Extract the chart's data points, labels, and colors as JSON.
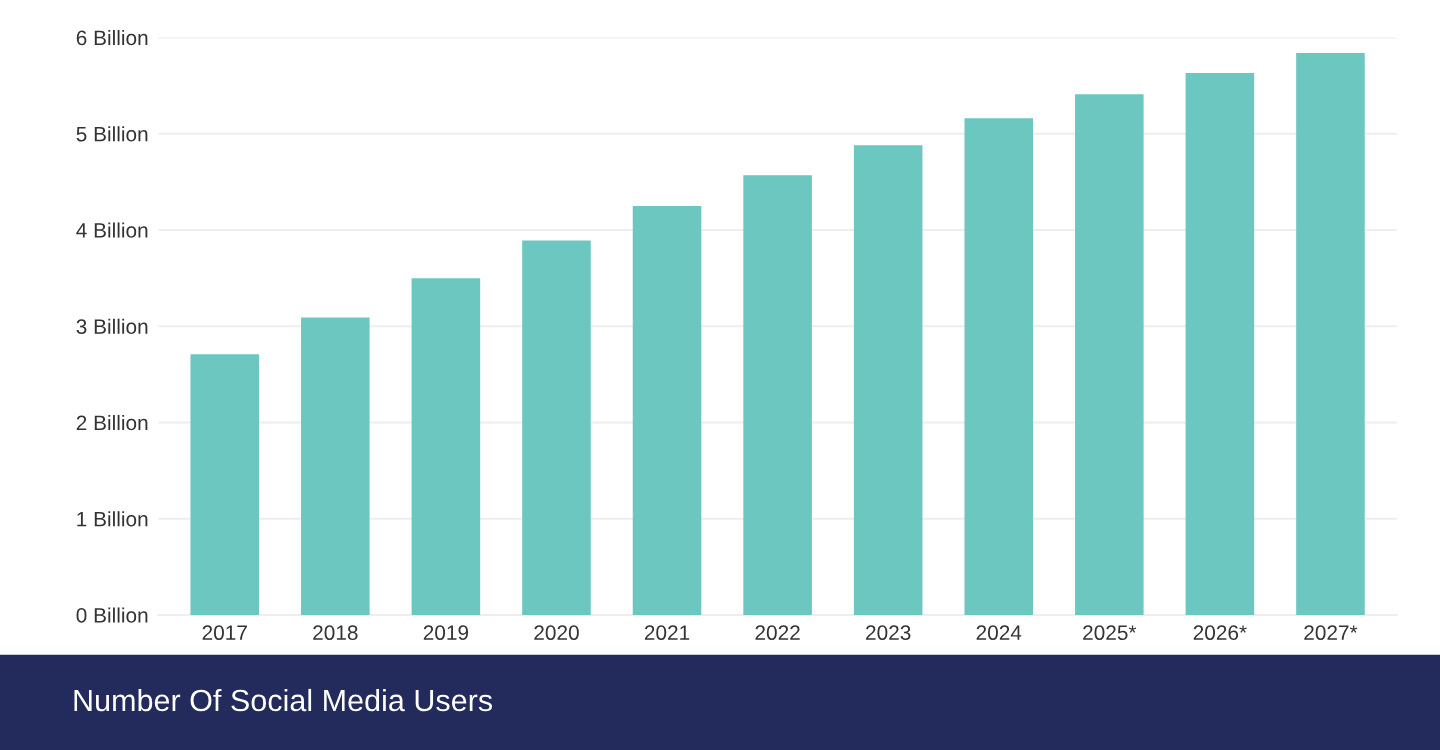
{
  "chart_data": {
    "type": "bar",
    "title": "Number Of Social Media Users",
    "categories": [
      "2017",
      "2018",
      "2019",
      "2020",
      "2021",
      "2022",
      "2023",
      "2024",
      "2025*",
      "2026*",
      "2027*"
    ],
    "values": [
      2.71,
      3.09,
      3.5,
      3.89,
      4.25,
      4.57,
      4.88,
      5.16,
      5.41,
      5.63,
      5.84
    ],
    "color": "#6cc7c1",
    "ylim": [
      0,
      6
    ],
    "yticks": [
      {
        "value": 0,
        "label": "0 Billion"
      },
      {
        "value": 1,
        "label": "1 Billion"
      },
      {
        "value": 2,
        "label": "2 Billion"
      },
      {
        "value": 3,
        "label": "3 Billion"
      },
      {
        "value": 4,
        "label": "4 Billion"
      },
      {
        "value": 5,
        "label": "5 Billion"
      },
      {
        "value": 6,
        "label": "6 Billion"
      }
    ],
    "grid": "y"
  }
}
